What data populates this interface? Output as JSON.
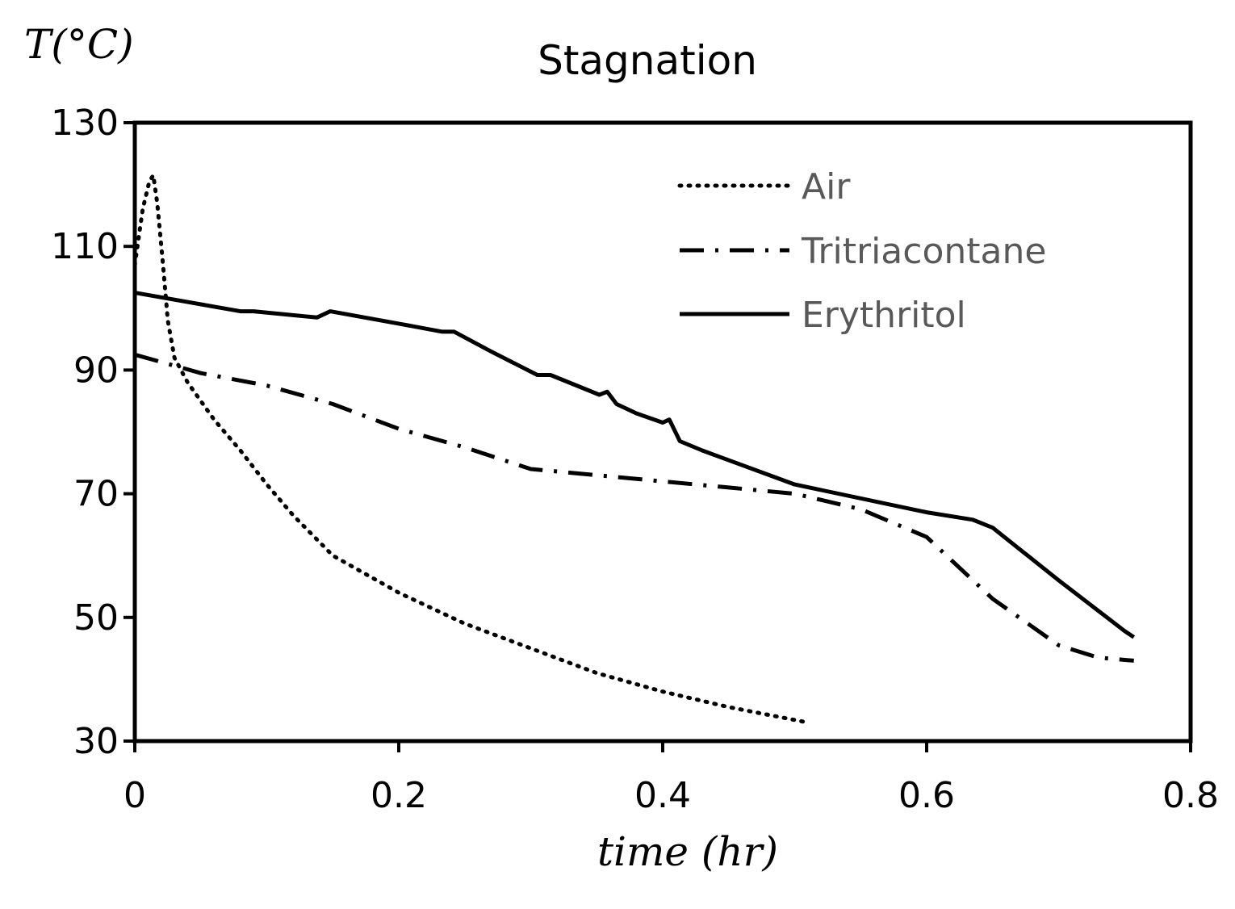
{
  "chart_data": {
    "type": "line",
    "title": "Stagnation",
    "xlabel": "time (hr)",
    "ylabel": "T(°C)",
    "xlim": [
      0,
      0.8
    ],
    "ylim": [
      30,
      130
    ],
    "xticks": [
      "0",
      "0.2",
      "0.4",
      "0.6",
      "0.8"
    ],
    "yticks": [
      "30",
      "50",
      "70",
      "90",
      "110",
      "130"
    ],
    "xtick_values": [
      0,
      0.2,
      0.4,
      0.6,
      0.8
    ],
    "ytick_values": [
      30,
      50,
      70,
      90,
      110,
      130
    ],
    "grid": false,
    "legend_position": "top-right",
    "series": [
      {
        "name": "Air",
        "style": "dotted",
        "color": "#000000",
        "x": [
          0,
          0.006,
          0.011,
          0.014,
          0.017,
          0.021,
          0.025,
          0.03,
          0.04,
          0.06,
          0.08,
          0.1,
          0.12,
          0.15,
          0.2,
          0.25,
          0.3,
          0.35,
          0.4,
          0.45,
          0.51
        ],
        "y": [
          107,
          116,
          120.5,
          121.5,
          117,
          108,
          98,
          92,
          88,
          82,
          77,
          71.5,
          66.5,
          60,
          54,
          49,
          45,
          41,
          38,
          35.5,
          33
        ]
      },
      {
        "name": "Tritriacontane",
        "style": "dash-dot",
        "color": "#000000",
        "x": [
          0,
          0.05,
          0.1,
          0.15,
          0.2,
          0.25,
          0.3,
          0.35,
          0.4,
          0.45,
          0.5,
          0.55,
          0.6,
          0.65,
          0.7,
          0.73,
          0.757
        ],
        "y": [
          92.5,
          89.5,
          87.5,
          84.5,
          80.5,
          77.5,
          74,
          73,
          72,
          71,
          70,
          67.5,
          63,
          53,
          45.5,
          43.5,
          43
        ]
      },
      {
        "name": "Erythritol",
        "style": "solid",
        "color": "#000000",
        "x": [
          0,
          0.04,
          0.08,
          0.09,
          0.138,
          0.148,
          0.2,
          0.233,
          0.242,
          0.27,
          0.305,
          0.315,
          0.352,
          0.358,
          0.365,
          0.38,
          0.4,
          0.405,
          0.413,
          0.43,
          0.5,
          0.6,
          0.635,
          0.65,
          0.7,
          0.75,
          0.757
        ],
        "y": [
          102.5,
          101,
          99.5,
          99.5,
          98.5,
          99.5,
          97.5,
          96.2,
          96.2,
          93,
          89.2,
          89.2,
          86,
          86.5,
          84.5,
          83,
          81.5,
          82,
          78.5,
          77,
          71.5,
          67,
          65.8,
          64.5,
          56,
          47.8,
          46.8
        ]
      }
    ]
  }
}
